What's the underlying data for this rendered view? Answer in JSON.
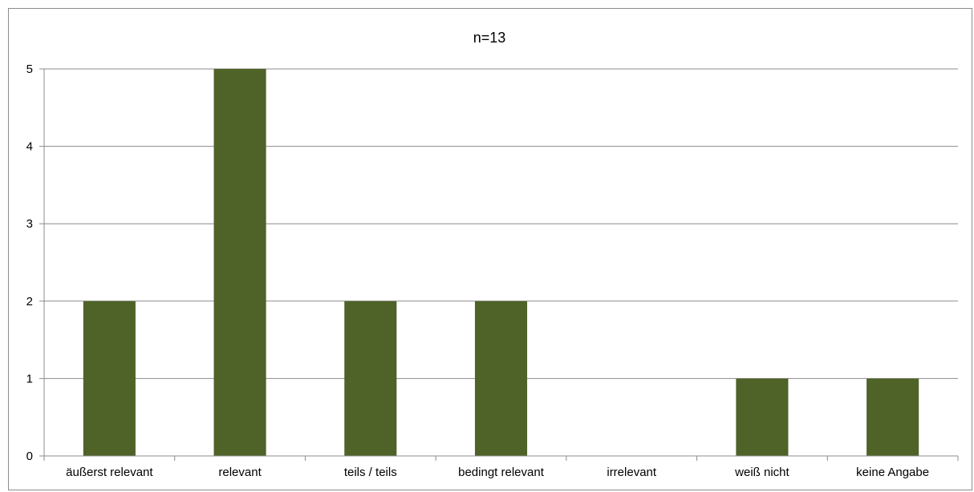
{
  "chart_data": {
    "type": "bar",
    "title": "n=13",
    "categories": [
      "äußerst relevant",
      "relevant",
      "teils / teils",
      "bedingt relevant",
      "irrelevant",
      "weiß nicht",
      "keine Angabe"
    ],
    "values": [
      2,
      5,
      2,
      2,
      0,
      1,
      1
    ],
    "xlabel": "",
    "ylabel": "",
    "ylim": [
      0,
      5
    ],
    "yticks": [
      0,
      1,
      2,
      3,
      4,
      5
    ],
    "grid": true,
    "legend": "none",
    "bar_color": "#4f6228",
    "grid_color": "#8c8c8c"
  }
}
